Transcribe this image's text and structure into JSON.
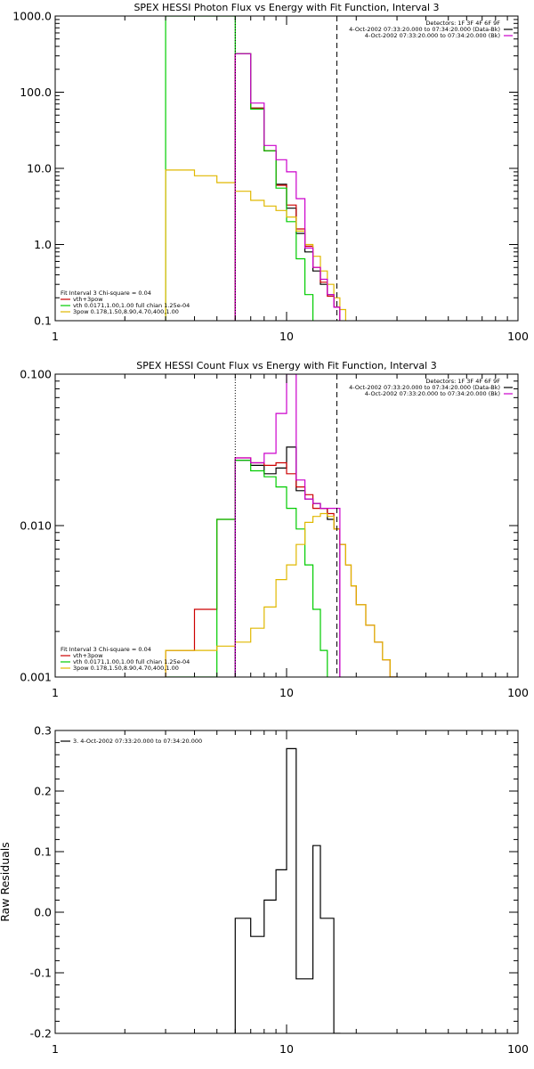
{
  "chart_data": [
    {
      "type": "line",
      "title": "SPEX HESSI Photon Flux vs Energy with Fit Function, Interval 3",
      "xlabel": "",
      "ylabel": "",
      "xscale": "log",
      "yscale": "log",
      "xlim": [
        1,
        100
      ],
      "ylim": [
        0.1,
        1000
      ],
      "x_ticks": [
        {
          "value": 1,
          "label": "1"
        },
        {
          "value": 10,
          "label": "10"
        },
        {
          "value": 100,
          "label": "100"
        }
      ],
      "y_ticks": [
        {
          "value": 0.1,
          "label": "0.1"
        },
        {
          "value": 1,
          "label": "1.0"
        },
        {
          "value": 10,
          "label": "10.0"
        },
        {
          "value": 100,
          "label": "100.0"
        },
        {
          "value": 1000,
          "label": "1000.0"
        }
      ],
      "legend_right": [
        "Detectors: 1F 3F 4F 6F 9F",
        "4-Oct-2002 07:33:20.000 to 07:34:20.000 (Data-Bk)",
        "4-Oct-2002 07:33:20.000 to 07:34:20.000 (Bk)"
      ],
      "legend_left": [
        "Fit Interval 3   Chi-square = 0.04",
        "vth+3pow",
        "vth 0.0171,1.00,1.00  full chian 1.25e-04",
        "3pow 0.178,1.50,8.90,4.70,400,1.00"
      ],
      "energy_range": [
        6.0,
        16.5
      ],
      "series": [
        {
          "role": "data",
          "color": "#000000",
          "edges": [
            6.0,
            7.0,
            8.0,
            9.0,
            10.0,
            11.0,
            12.0,
            13.0,
            14.0,
            15.0,
            16.0,
            17.0
          ],
          "values": [
            320,
            62,
            17,
            6.2,
            3.0,
            1.4,
            0.8,
            0.45,
            0.3,
            0.22,
            0.15
          ]
        },
        {
          "role": "vth+3pow",
          "color": "#cc0000",
          "edges": [
            6.0,
            7.0,
            8.0,
            9.0,
            10.0,
            11.0,
            12.0,
            13.0,
            14.0,
            15.0,
            16.0,
            17.0
          ],
          "values": [
            320,
            62,
            17,
            6.0,
            3.3,
            1.6,
            0.95,
            0.5,
            0.32,
            0.21,
            0.15
          ]
        },
        {
          "role": "vth",
          "color": "#00cc00",
          "edges": [
            3.0,
            4.0,
            5.0,
            6.0,
            7.0,
            8.0,
            9.0,
            10.0,
            11.0,
            12.0,
            13.0
          ],
          "values": [
            1000,
            1000,
            1000,
            320,
            60,
            17,
            5.5,
            2.0,
            0.65,
            0.22
          ]
        },
        {
          "role": "3pow",
          "color": "#e0b800",
          "edges": [
            3.0,
            4.0,
            5.0,
            6.0,
            7.0,
            8.0,
            9.0,
            10.0,
            11.0,
            12.0,
            13.0,
            14.0,
            15.0,
            16.0,
            17.0,
            18.0
          ],
          "values": [
            9.5,
            8,
            6.5,
            5,
            3.8,
            3.2,
            2.8,
            2.3,
            1.5,
            1.0,
            0.7,
            0.45,
            0.3,
            0.2,
            0.14
          ]
        },
        {
          "role": "background",
          "color": "#cc00cc",
          "edges": [
            6.0,
            7.0,
            8.0,
            9.0,
            10.0,
            11.0,
            12.0,
            13.0,
            14.0,
            15.0,
            16.0,
            17.0
          ],
          "values": [
            320,
            72,
            20,
            13,
            9,
            4,
            0.9,
            0.5,
            0.35,
            0.22,
            0.15
          ]
        }
      ]
    },
    {
      "type": "line",
      "title": "SPEX HESSI Count Flux vs Energy with Fit Function, Interval 3",
      "xlabel": "",
      "ylabel": "",
      "xscale": "log",
      "yscale": "log",
      "xlim": [
        1,
        100
      ],
      "ylim": [
        0.001,
        0.1
      ],
      "x_ticks": [
        {
          "value": 1,
          "label": "1"
        },
        {
          "value": 10,
          "label": "10"
        },
        {
          "value": 100,
          "label": "100"
        }
      ],
      "y_ticks": [
        {
          "value": 0.001,
          "label": "0.001"
        },
        {
          "value": 0.01,
          "label": "0.010"
        },
        {
          "value": 0.1,
          "label": "0.100"
        }
      ],
      "legend_right": [
        "Detectors: 1F 3F 4F 6F 9F",
        "4-Oct-2002 07:33:20.000 to 07:34:20.000 (Data-Bk)",
        "4-Oct-2002 07:33:20.000 to 07:34:20.000 (Bk)"
      ],
      "legend_left": [
        "Fit Interval 3   Chi-square = 0.04",
        "vth+3pow",
        "vth 0.0171,1.00,1.00  full chian 1.25e-04",
        "3pow 0.178,1.50,8.90,4.70,400,1.00"
      ],
      "energy_range": [
        6.0,
        16.5
      ],
      "series": [
        {
          "role": "data",
          "color": "#000000",
          "edges": [
            6.0,
            7.0,
            8.0,
            9.0,
            10.0,
            11.0,
            12.0,
            13.0,
            14.0,
            15.0,
            16.0,
            17.0
          ],
          "values": [
            0.027,
            0.025,
            0.022,
            0.024,
            0.033,
            0.017,
            0.015,
            0.014,
            0.013,
            0.011,
            0.0095
          ]
        },
        {
          "role": "vth+3pow",
          "color": "#cc0000",
          "edges": [
            3.0,
            4.0,
            5.0,
            6.0,
            7.0,
            8.0,
            9.0,
            10.0,
            11.0,
            12.0,
            13.0,
            14.0,
            15.0,
            16.0,
            17.0,
            18.0,
            19.0,
            20.0,
            22.0,
            24.0,
            26.0,
            28.0,
            30.0
          ],
          "values": [
            0.0015,
            0.0028,
            0.011,
            0.028,
            0.026,
            0.025,
            0.026,
            0.022,
            0.018,
            0.016,
            0.013,
            0.013,
            0.012,
            0.0095,
            0.0075,
            0.0055,
            0.004,
            0.003,
            0.0022,
            0.0017,
            0.0013,
            0.001
          ]
        },
        {
          "role": "vth",
          "color": "#00cc00",
          "edges": [
            3.0,
            4.0,
            5.0,
            6.0,
            7.0,
            8.0,
            9.0,
            10.0,
            11.0,
            12.0,
            13.0,
            14.0,
            15.0
          ],
          "values": [
            0.001,
            0.001,
            0.011,
            0.027,
            0.023,
            0.021,
            0.018,
            0.013,
            0.0095,
            0.0055,
            0.0028,
            0.0015
          ]
        },
        {
          "role": "3pow",
          "color": "#e0b800",
          "edges": [
            3.0,
            4.0,
            5.0,
            6.0,
            7.0,
            8.0,
            9.0,
            10.0,
            11.0,
            12.0,
            13.0,
            14.0,
            15.0,
            16.0,
            17.0,
            18.0,
            19.0,
            20.0,
            22.0,
            24.0,
            26.0,
            28.0,
            30.0
          ],
          "values": [
            0.0015,
            0.0015,
            0.0016,
            0.0017,
            0.0021,
            0.0029,
            0.0044,
            0.0055,
            0.0075,
            0.0105,
            0.0115,
            0.012,
            0.0115,
            0.0095,
            0.0075,
            0.0055,
            0.004,
            0.003,
            0.0022,
            0.0017,
            0.0013,
            0.001
          ]
        },
        {
          "role": "background",
          "color": "#cc00cc",
          "edges": [
            6.0,
            7.0,
            8.0,
            9.0,
            10.0,
            11.0,
            12.0,
            13.0,
            14.0,
            15.0,
            16.0,
            17.0
          ],
          "values": [
            0.028,
            0.026,
            0.03,
            0.055,
            0.1,
            0.02,
            0.015,
            0.014,
            0.013,
            0.013,
            0.013
          ]
        }
      ]
    },
    {
      "type": "line",
      "title": "",
      "xlabel": "",
      "ylabel": "Raw Residuals",
      "xscale": "log",
      "yscale": "linear",
      "xlim": [
        1,
        100
      ],
      "ylim": [
        -0.2,
        0.3
      ],
      "x_ticks": [
        {
          "value": 1,
          "label": "1"
        },
        {
          "value": 10,
          "label": "10"
        },
        {
          "value": 100,
          "label": "100"
        }
      ],
      "y_ticks": [
        {
          "value": -0.2,
          "label": "-0.2"
        },
        {
          "value": -0.1,
          "label": "-0.1"
        },
        {
          "value": 0.0,
          "label": "0.0"
        },
        {
          "value": 0.1,
          "label": "0.1"
        },
        {
          "value": 0.2,
          "label": "0.2"
        },
        {
          "value": 0.3,
          "label": "0.3"
        }
      ],
      "legend_left": [
        "3.  4-Oct-2002 07:33:20.000 to 07:34:20.000"
      ],
      "series": [
        {
          "role": "residuals",
          "color": "#000000",
          "edges": [
            6.0,
            7.0,
            8.0,
            9.0,
            10.0,
            11.0,
            12.0,
            13.0,
            14.0,
            15.0,
            16.0,
            17.0
          ],
          "values": [
            -0.01,
            -0.04,
            0.02,
            0.07,
            0.27,
            -0.11,
            -0.11,
            0.11,
            -0.01,
            -0.01,
            -0.2
          ]
        }
      ]
    }
  ]
}
